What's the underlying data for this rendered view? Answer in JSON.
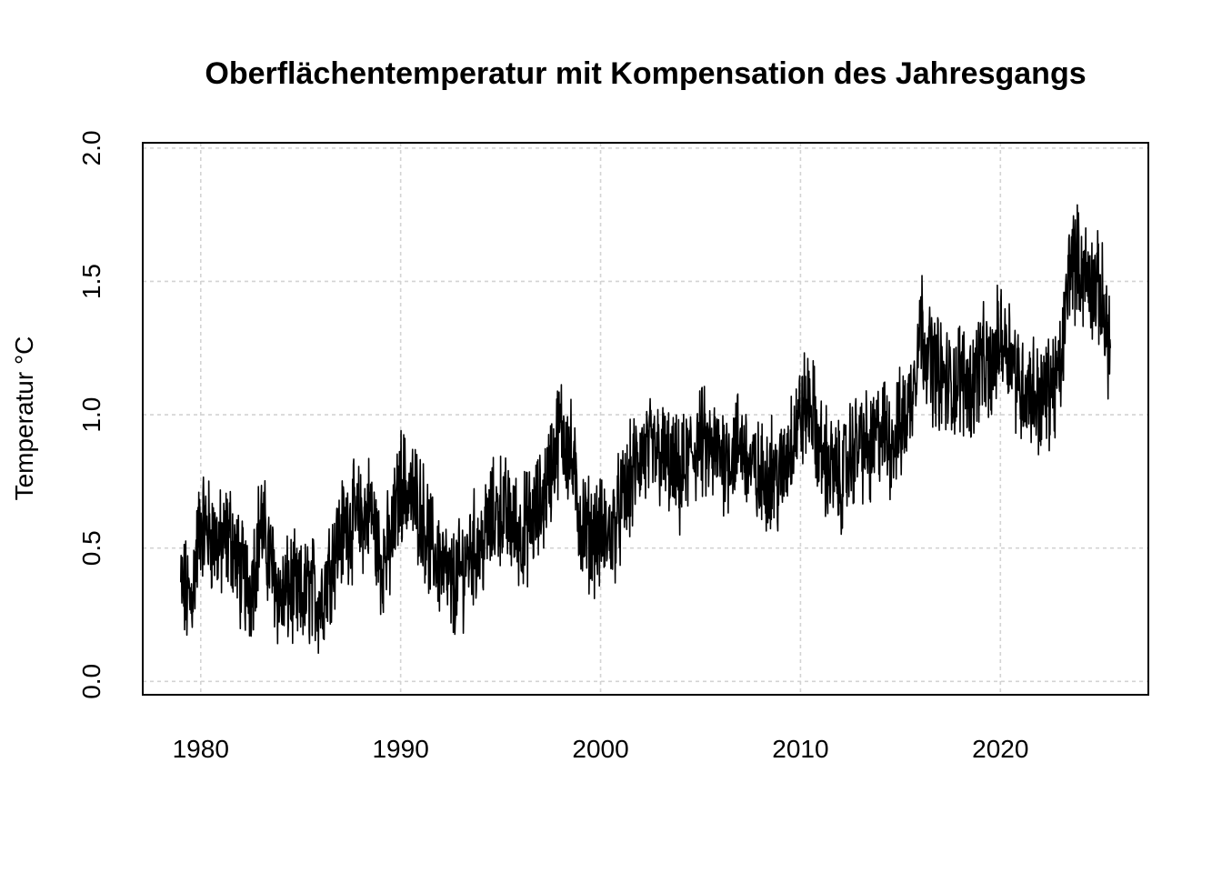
{
  "chart_data": {
    "type": "line",
    "title": "Oberflächentemperatur mit Kompensation des Jahresgangs",
    "xlabel": "",
    "ylabel": "Temperatur °C",
    "xlim": [
      1977.1,
      2027.4
    ],
    "ylim": [
      -0.05,
      2.02
    ],
    "x_ticks": [
      1980,
      1990,
      2000,
      2010,
      2020
    ],
    "x_tick_labels": [
      "1980",
      "1990",
      "2000",
      "2010",
      "2020"
    ],
    "y_ticks": [
      0.0,
      0.5,
      1.0,
      1.5,
      2.0
    ],
    "y_tick_labels": [
      "0.0",
      "0.5",
      "1.0",
      "1.5",
      "2.0"
    ],
    "grid": true,
    "legend": "none",
    "colors": {
      "line": "#000000",
      "grid": "#d3d3d3",
      "background": "#ffffff"
    },
    "series": [
      {
        "x": [
          1979.0,
          1979.5,
          1980.0,
          1980.5,
          1981.0,
          1981.5,
          1982.0,
          1982.5,
          1983.0,
          1983.5,
          1984.0,
          1984.5,
          1985.0,
          1985.5,
          1986.0,
          1986.5,
          1987.0,
          1987.5,
          1988.0,
          1988.5,
          1989.0,
          1989.5,
          1990.0,
          1990.5,
          1991.0,
          1991.5,
          1992.0,
          1992.5,
          1993.0,
          1993.5,
          1994.0,
          1994.5,
          1995.0,
          1995.5,
          1996.0,
          1996.5,
          1997.0,
          1997.5,
          1998.0,
          1998.5,
          1999.0,
          1999.5,
          2000.0,
          2000.5,
          2001.0,
          2001.5,
          2002.0,
          2002.5,
          2003.0,
          2003.5,
          2004.0,
          2004.5,
          2005.0,
          2005.5,
          2006.0,
          2006.5,
          2007.0,
          2007.5,
          2008.0,
          2008.5,
          2009.0,
          2009.5,
          2010.0,
          2010.5,
          2011.0,
          2011.5,
          2012.0,
          2012.5,
          2013.0,
          2013.5,
          2014.0,
          2014.5,
          2015.0,
          2015.5,
          2016.0,
          2016.5,
          2017.0,
          2017.5,
          2018.0,
          2018.5,
          2019.0,
          2019.5,
          2020.0,
          2020.5,
          2021.0,
          2021.5,
          2022.0,
          2022.5,
          2023.0,
          2023.5,
          2024.0,
          2024.5,
          2025.0,
          2025.5
        ],
        "values": [
          0.35,
          0.3,
          0.6,
          0.55,
          0.5,
          0.55,
          0.4,
          0.35,
          0.6,
          0.45,
          0.3,
          0.35,
          0.3,
          0.35,
          0.3,
          0.45,
          0.55,
          0.6,
          0.6,
          0.65,
          0.45,
          0.5,
          0.75,
          0.7,
          0.65,
          0.5,
          0.45,
          0.35,
          0.4,
          0.5,
          0.5,
          0.6,
          0.65,
          0.6,
          0.55,
          0.6,
          0.65,
          0.8,
          0.95,
          0.85,
          0.6,
          0.55,
          0.55,
          0.55,
          0.65,
          0.75,
          0.85,
          0.85,
          0.85,
          0.8,
          0.75,
          0.85,
          0.9,
          0.85,
          0.85,
          0.85,
          0.9,
          0.8,
          0.75,
          0.8,
          0.75,
          0.9,
          1.0,
          1.05,
          0.85,
          0.8,
          0.75,
          0.85,
          0.9,
          0.85,
          0.95,
          0.9,
          0.95,
          1.05,
          1.35,
          1.2,
          1.15,
          1.1,
          1.15,
          1.1,
          1.2,
          1.15,
          1.3,
          1.25,
          1.1,
          1.1,
          1.05,
          1.1,
          1.15,
          1.6,
          1.55,
          1.5,
          1.45,
          1.25
        ]
      }
    ]
  }
}
